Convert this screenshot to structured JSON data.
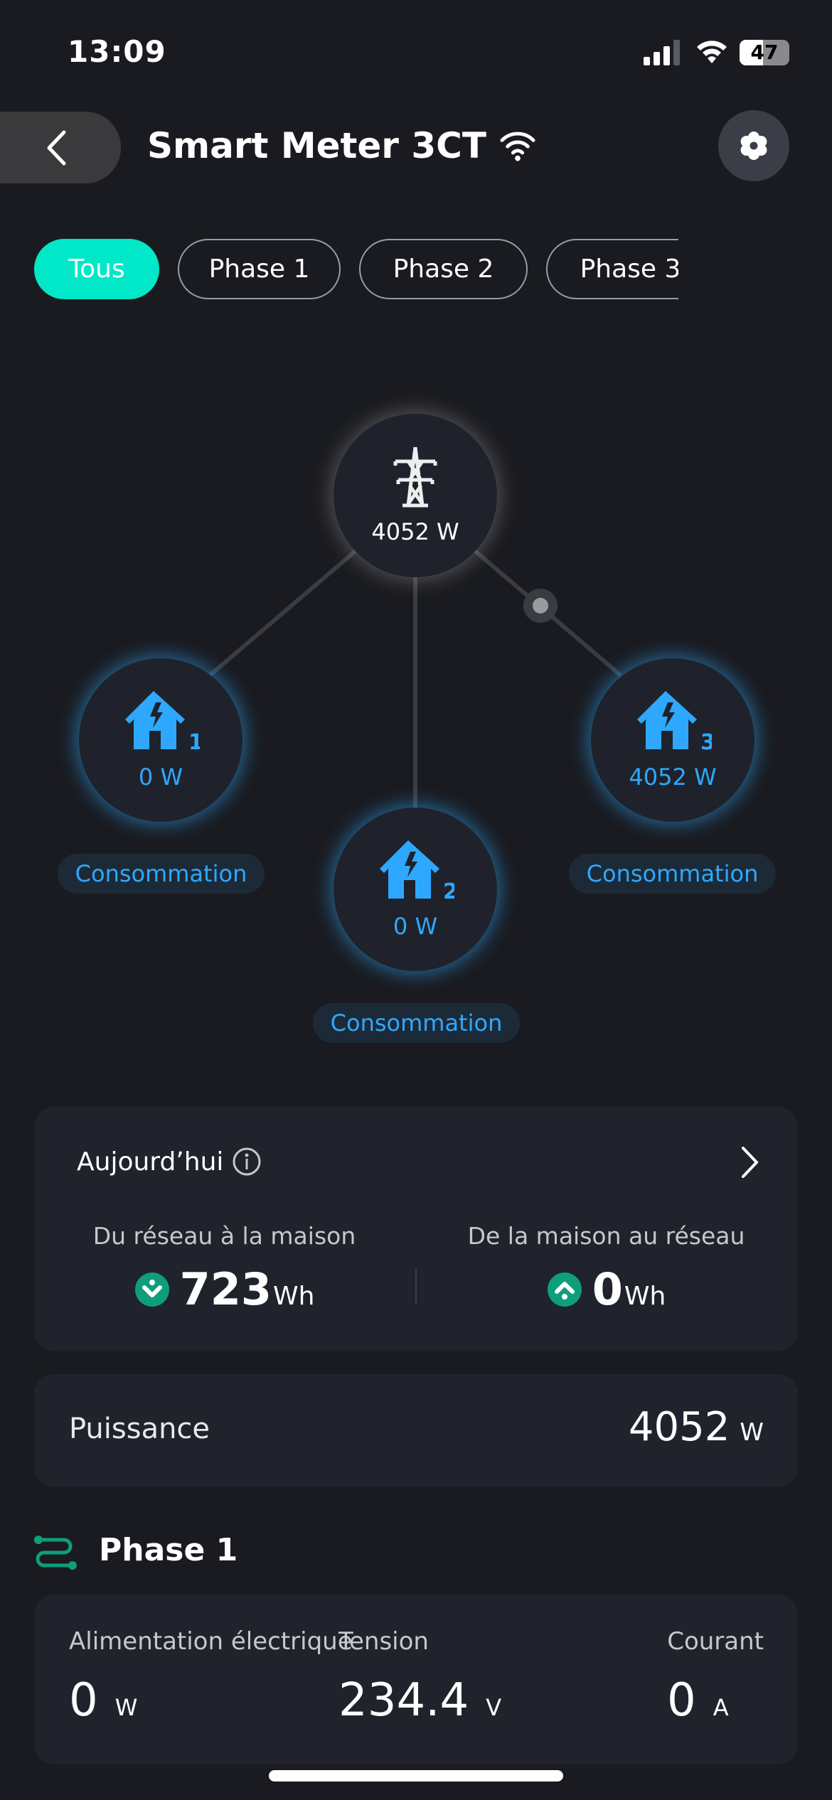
{
  "status_bar": {
    "time": "13:09",
    "battery": "47",
    "battery_level_percent": 47
  },
  "header": {
    "title": "Smart Meter 3CT",
    "back_icon": "chevron-left-icon",
    "settings_icon": "gear-icon",
    "connection_icon": "wifi-icon"
  },
  "tabs": [
    {
      "label": "Tous",
      "active": true
    },
    {
      "label": "Phase 1"
    },
    {
      "label": "Phase 2"
    },
    {
      "label": "Phase 3"
    }
  ],
  "diagram": {
    "grid": {
      "value": "4052 W",
      "icon": "power-tower-icon"
    },
    "houses": [
      {
        "number": "1",
        "value": "0 W",
        "status": "Consommation"
      },
      {
        "number": "2",
        "value": "0 W",
        "status": "Consommation"
      },
      {
        "number": "3",
        "value": "4052 W",
        "status": "Consommation"
      }
    ]
  },
  "today": {
    "title": "Aujourd’hui",
    "import_label": "Du réseau à la maison",
    "import_value": "723",
    "import_unit": "Wh",
    "export_label": "De la maison au réseau",
    "export_value": "0",
    "export_unit": "Wh"
  },
  "power": {
    "label": "Puissance",
    "value": "4052",
    "unit": "W"
  },
  "phase1": {
    "title": "Phase 1",
    "metrics": [
      {
        "label": "Alimentation électrique",
        "value": "0",
        "unit": "W"
      },
      {
        "label": "Tension",
        "value": "234.4",
        "unit": "V"
      },
      {
        "label": "Courant",
        "value": "0",
        "unit": "A"
      }
    ]
  },
  "colors": {
    "accent": "#00e8c8",
    "house": "#2ea8ff",
    "background": "#1a1b20",
    "card": "#20232c",
    "green": "#0f9e7b"
  }
}
